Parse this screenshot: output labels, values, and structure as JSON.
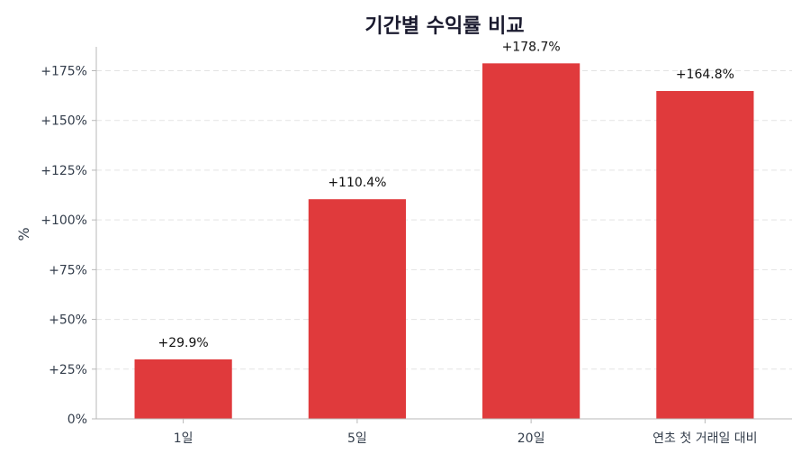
{
  "chart_data": {
    "type": "bar",
    "title": "기간별 수익률 비교",
    "ylabel": "%",
    "xlabel": "",
    "categories": [
      "1일",
      "5일",
      "20일",
      "연초 첫 거래일 대비"
    ],
    "values": [
      29.9,
      110.4,
      178.7,
      164.8
    ],
    "value_labels": [
      "+29.9%",
      "+110.4%",
      "+178.7%",
      "+164.8%"
    ],
    "yticks": [
      0,
      25,
      50,
      75,
      100,
      125,
      150,
      175
    ],
    "ytick_labels": [
      "0%",
      "+25%",
      "+50%",
      "+75%",
      "+100%",
      "+125%",
      "+150%",
      "+175%"
    ],
    "ylim": [
      0,
      187
    ],
    "grid": true,
    "bar_color": "#e03a3c"
  }
}
